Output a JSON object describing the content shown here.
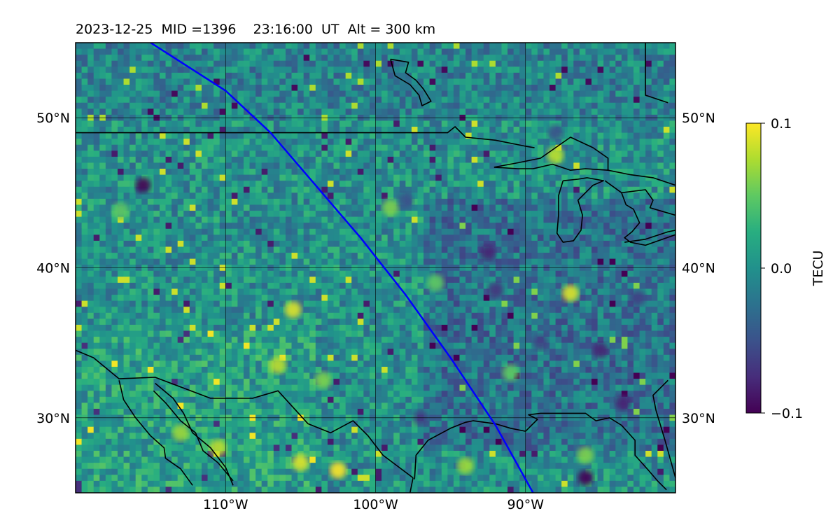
{
  "title": "2023-12-25  MID =1396    23:16:00  UT  Alt = 300 km",
  "chart_data": {
    "type": "heatmap",
    "xlim": [
      -120,
      -80
    ],
    "ylim": [
      25,
      55
    ],
    "x_ticks": [
      {
        "value": -110,
        "label": "110°W"
      },
      {
        "value": -100,
        "label": "100°W"
      },
      {
        "value": -90,
        "label": "90°W"
      }
    ],
    "y_ticks": [
      {
        "value": 30,
        "label": "30°N"
      },
      {
        "value": 40,
        "label": "40°N"
      },
      {
        "value": 50,
        "label": "50°N"
      }
    ],
    "grid": true,
    "colormap": "viridis",
    "colorbar": {
      "label": "TECU",
      "range": [
        -0.1,
        0.1
      ],
      "ticks": [
        {
          "value": 0.1,
          "label": "0.1"
        },
        {
          "value": 0.0,
          "label": "0.0"
        },
        {
          "value": -0.1,
          "label": "−0.1"
        }
      ]
    },
    "track": {
      "color": "#0000ff",
      "points": [
        [
          -115,
          55
        ],
        [
          -110,
          51.8
        ],
        [
          -107,
          49
        ],
        [
          -104,
          45.5
        ],
        [
          -101,
          42
        ],
        [
          -98,
          38.2
        ],
        [
          -95,
          34
        ],
        [
          -92,
          29.5
        ],
        [
          -89.5,
          25
        ]
      ]
    },
    "hotspots": [
      {
        "lon": -102.5,
        "lat": 26.5,
        "value": 0.1
      },
      {
        "lon": -105,
        "lat": 27,
        "value": 0.09
      },
      {
        "lon": -110.5,
        "lat": 28,
        "value": 0.08
      },
      {
        "lon": -113,
        "lat": 29,
        "value": 0.07
      },
      {
        "lon": -106.5,
        "lat": 33.5,
        "value": 0.08
      },
      {
        "lon": -103.5,
        "lat": 32.5,
        "value": 0.06
      },
      {
        "lon": -105.5,
        "lat": 37.2,
        "value": 0.09
      },
      {
        "lon": -87,
        "lat": 38.3,
        "value": 0.09
      },
      {
        "lon": -88,
        "lat": 47.5,
        "value": 0.08
      },
      {
        "lon": -99,
        "lat": 44,
        "value": 0.06
      },
      {
        "lon": -96,
        "lat": 39,
        "value": 0.05
      },
      {
        "lon": -91,
        "lat": 33,
        "value": 0.05
      },
      {
        "lon": -94,
        "lat": 26.8,
        "value": 0.07
      },
      {
        "lon": -86,
        "lat": 27.5,
        "value": 0.06
      },
      {
        "lon": -117,
        "lat": 43.8,
        "value": 0.05
      }
    ],
    "coldspots": [
      {
        "lon": -86,
        "lat": 26,
        "value": -0.1
      },
      {
        "lon": -85,
        "lat": 34.5,
        "value": -0.08
      },
      {
        "lon": -92.5,
        "lat": 41,
        "value": -0.08
      },
      {
        "lon": -92,
        "lat": 38.5,
        "value": -0.07
      },
      {
        "lon": -83.5,
        "lat": 31,
        "value": -0.08
      },
      {
        "lon": -97,
        "lat": 30,
        "value": -0.06
      },
      {
        "lon": -115.5,
        "lat": 45.5,
        "value": -0.1
      },
      {
        "lon": -89,
        "lat": 35,
        "value": -0.06
      },
      {
        "lon": -88,
        "lat": 49,
        "value": -0.05
      },
      {
        "lon": -98,
        "lat": 44.5,
        "value": -0.05
      },
      {
        "lon": -82.5,
        "lat": 38,
        "value": -0.06
      }
    ],
    "coastlines": [
      {
        "name": "us-canada-border",
        "points": [
          [
            -120,
            49
          ],
          [
            -95.2,
            49
          ],
          [
            -94.7,
            49.4
          ],
          [
            -94,
            48.7
          ],
          [
            -92,
            48.5
          ],
          [
            -90,
            48.1
          ],
          [
            -89.4,
            48
          ]
        ]
      },
      {
        "name": "superior",
        "points": [
          [
            -92.1,
            46.7
          ],
          [
            -90.5,
            47
          ],
          [
            -89,
            47.3
          ],
          [
            -88,
            48
          ],
          [
            -87,
            48.7
          ],
          [
            -85.5,
            48
          ],
          [
            -84.5,
            47.3
          ],
          [
            -84.5,
            46.5
          ],
          [
            -86,
            46.6
          ],
          [
            -87,
            46.5
          ],
          [
            -88.2,
            46.9
          ],
          [
            -89.5,
            46.6
          ],
          [
            -90.5,
            46.6
          ],
          [
            -92.1,
            46.7
          ]
        ]
      },
      {
        "name": "st-marys-huron-north",
        "points": [
          [
            -84.5,
            46.5
          ],
          [
            -83,
            46.2
          ],
          [
            -81.5,
            46
          ],
          [
            -80,
            45.5
          ]
        ]
      },
      {
        "name": "michigan",
        "points": [
          [
            -87.5,
            45.8
          ],
          [
            -87.8,
            44.8
          ],
          [
            -87.8,
            43.5
          ],
          [
            -87.9,
            42.3
          ],
          [
            -87.5,
            41.7
          ],
          [
            -86.8,
            41.8
          ],
          [
            -86.3,
            42.5
          ],
          [
            -86.2,
            43.5
          ],
          [
            -86.5,
            44.5
          ],
          [
            -85.5,
            45.5
          ],
          [
            -84.8,
            45.8
          ],
          [
            -85.9,
            46
          ],
          [
            -86.5,
            45.9
          ],
          [
            -87.5,
            45.8
          ]
        ]
      },
      {
        "name": "huron",
        "points": [
          [
            -84.7,
            45.8
          ],
          [
            -83.6,
            45
          ],
          [
            -83.3,
            44.2
          ],
          [
            -82.8,
            43.9
          ],
          [
            -82.4,
            43
          ],
          [
            -82.9,
            42.4
          ],
          [
            -83.4,
            42
          ],
          [
            -83,
            41.7
          ],
          [
            -82,
            41.5
          ],
          [
            -80,
            42.2
          ]
        ]
      },
      {
        "name": "huron-georgian",
        "points": [
          [
            -83.6,
            45
          ],
          [
            -82,
            45.2
          ],
          [
            -81.5,
            44.5
          ],
          [
            -81.7,
            44
          ],
          [
            -80,
            43.5
          ]
        ]
      },
      {
        "name": "erie",
        "points": [
          [
            -83.4,
            41.7
          ],
          [
            -82,
            41.9
          ],
          [
            -80.5,
            42.4
          ],
          [
            -80,
            42.5
          ]
        ]
      },
      {
        "name": "hudson-bay",
        "points": [
          [
            -82,
            55
          ],
          [
            -82,
            51.5
          ],
          [
            -80.5,
            51
          ]
        ]
      },
      {
        "name": "winnipeg",
        "points": [
          [
            -99,
            53.9
          ],
          [
            -97.8,
            53.7
          ],
          [
            -98,
            53
          ],
          [
            -97.3,
            52.5
          ],
          [
            -96.8,
            51.9
          ],
          [
            -96.3,
            51.1
          ],
          [
            -96.9,
            50.8
          ],
          [
            -97.1,
            51.5
          ],
          [
            -97.7,
            52.2
          ],
          [
            -98.7,
            52.8
          ],
          [
            -99,
            53.9
          ]
        ]
      },
      {
        "name": "gulf-coast",
        "points": [
          [
            -80,
            26
          ],
          [
            -80.7,
            28.5
          ],
          [
            -81.3,
            30.5
          ],
          [
            -81.5,
            31.5
          ],
          [
            -80.5,
            32.5
          ]
        ]
      },
      {
        "name": "us-mexico-border",
        "points": [
          [
            -120,
            34.5
          ],
          [
            -118.8,
            34
          ],
          [
            -117.1,
            32.6
          ],
          [
            -114.7,
            32.7
          ],
          [
            -111,
            31.3
          ],
          [
            -108.2,
            31.3
          ],
          [
            -106.5,
            31.8
          ],
          [
            -104.5,
            29.6
          ],
          [
            -103,
            29
          ],
          [
            -101.5,
            29.8
          ],
          [
            -100.5,
            28.8
          ],
          [
            -99.5,
            27.5
          ],
          [
            -97.5,
            26
          ]
        ]
      },
      {
        "name": "gulf-texas-louisiana",
        "points": [
          [
            -97.4,
            25.9
          ],
          [
            -97.3,
            27.5
          ],
          [
            -96.5,
            28.5
          ],
          [
            -95,
            29.3
          ],
          [
            -94,
            29.7
          ],
          [
            -93.5,
            29.8
          ],
          [
            -92,
            29.6
          ],
          [
            -91,
            29.3
          ],
          [
            -90,
            29.1
          ],
          [
            -89.2,
            29.9
          ],
          [
            -89.8,
            30.2
          ],
          [
            -89,
            30.3
          ],
          [
            -87.5,
            30.3
          ],
          [
            -86,
            30.3
          ],
          [
            -85.3,
            29.8
          ],
          [
            -84.4,
            30
          ],
          [
            -83.6,
            29.5
          ],
          [
            -82.7,
            28.5
          ],
          [
            -82.7,
            27.5
          ],
          [
            -81.8,
            26.5
          ],
          [
            -81.2,
            25.8
          ],
          [
            -80.6,
            25.2
          ]
        ]
      },
      {
        "name": "mexico-gulf-coast",
        "points": [
          [
            -97.5,
            26
          ],
          [
            -97.8,
            24.5
          ],
          [
            -97.6,
            23
          ],
          [
            -97.2,
            21.5
          ]
        ]
      },
      {
        "name": "gulf-california",
        "points": [
          [
            -114.8,
            31.8
          ],
          [
            -114,
            31
          ],
          [
            -113,
            29.8
          ],
          [
            -112,
            29
          ],
          [
            -111.5,
            27.8
          ],
          [
            -110.5,
            27
          ],
          [
            -109.5,
            25.8
          ]
        ]
      },
      {
        "name": "mainland-coast-sw",
        "points": [
          [
            -114.7,
            32.3
          ],
          [
            -113.5,
            31.3
          ],
          [
            -112.8,
            30.3
          ],
          [
            -112.2,
            29
          ],
          [
            -111,
            28
          ],
          [
            -110,
            26.7
          ],
          [
            -109.5,
            25.5
          ]
        ]
      },
      {
        "name": "baja-peninsula",
        "points": [
          [
            -117.1,
            32.5
          ],
          [
            -116.8,
            31.2
          ],
          [
            -116,
            30
          ],
          [
            -115,
            28.8
          ],
          [
            -114.1,
            28
          ],
          [
            -114,
            27.3
          ],
          [
            -113,
            26.6
          ],
          [
            -112.2,
            25.5
          ]
        ]
      }
    ]
  }
}
